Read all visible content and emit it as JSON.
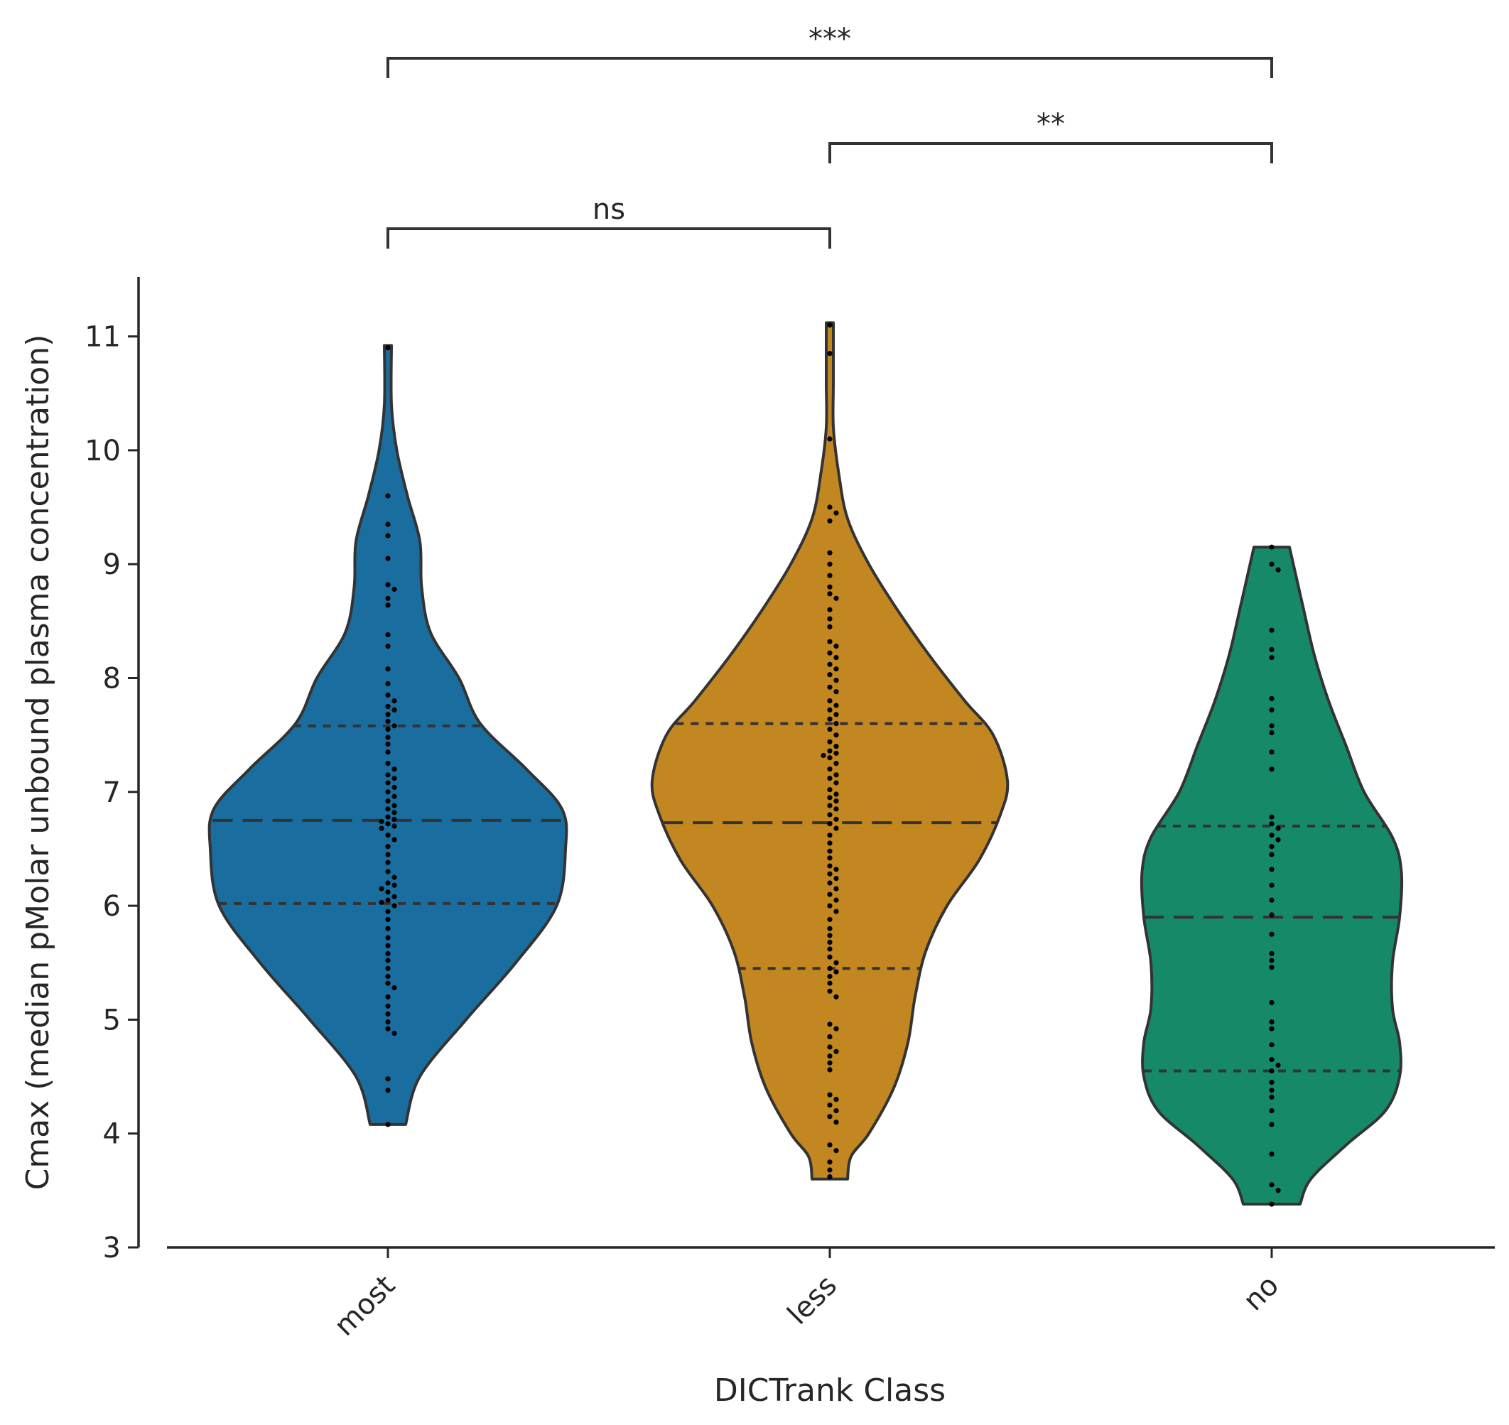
{
  "chart_data": {
    "type": "violin",
    "xlabel": "DICTrank Class",
    "ylabel": "Cmax (median pMolar unbound plasma concentration)",
    "ylim": [
      3,
      11.5
    ],
    "yticks": [
      3,
      4,
      5,
      6,
      7,
      8,
      9,
      10,
      11
    ],
    "categories": [
      "most",
      "less",
      "no"
    ],
    "grid": false,
    "series": [
      {
        "category": "most",
        "color": "#1a6e9f",
        "min": 4.08,
        "max": 10.92,
        "quartiles": [
          6.02,
          6.75,
          7.58
        ],
        "profile": [
          [
            4.08,
            0.1
          ],
          [
            4.5,
            0.18
          ],
          [
            5.0,
            0.44
          ],
          [
            5.5,
            0.72
          ],
          [
            6.0,
            0.95
          ],
          [
            6.5,
            1.0
          ],
          [
            6.85,
            0.98
          ],
          [
            7.2,
            0.78
          ],
          [
            7.6,
            0.52
          ],
          [
            8.0,
            0.4
          ],
          [
            8.4,
            0.24
          ],
          [
            8.8,
            0.19
          ],
          [
            9.2,
            0.18
          ],
          [
            9.6,
            0.11
          ],
          [
            10.0,
            0.05
          ],
          [
            10.4,
            0.02
          ],
          [
            10.92,
            0.02
          ]
        ],
        "points": [
          10.9,
          9.6,
          9.35,
          9.25,
          9.05,
          8.82,
          8.78,
          8.7,
          8.64,
          8.38,
          8.28,
          8.08,
          7.95,
          7.85,
          7.8,
          7.75,
          7.72,
          7.68,
          7.62,
          7.58,
          7.55,
          7.48,
          7.42,
          7.35,
          7.25,
          7.2,
          7.15,
          7.12,
          7.08,
          7.04,
          7.0,
          6.96,
          6.92,
          6.88,
          6.85,
          6.82,
          6.78,
          6.76,
          6.74,
          6.72,
          6.7,
          6.68,
          6.62,
          6.58,
          6.52,
          6.45,
          6.38,
          6.3,
          6.25,
          6.2,
          6.18,
          6.15,
          6.12,
          6.08,
          6.05,
          6.03,
          6.0,
          5.95,
          5.88,
          5.8,
          5.72,
          5.65,
          5.58,
          5.52,
          5.45,
          5.38,
          5.32,
          5.28,
          5.2,
          5.12,
          5.05,
          4.98,
          4.92,
          4.88,
          4.48,
          4.38,
          4.08
        ]
      },
      {
        "category": "less",
        "color": "#c28720",
        "min": 3.6,
        "max": 11.12,
        "quartiles": [
          5.45,
          6.73,
          7.6
        ],
        "profile": [
          [
            3.6,
            0.1
          ],
          [
            3.8,
            0.12
          ],
          [
            4.0,
            0.22
          ],
          [
            4.4,
            0.36
          ],
          [
            4.8,
            0.44
          ],
          [
            5.2,
            0.48
          ],
          [
            5.6,
            0.54
          ],
          [
            6.0,
            0.66
          ],
          [
            6.4,
            0.84
          ],
          [
            6.8,
            0.96
          ],
          [
            7.1,
            1.0
          ],
          [
            7.5,
            0.92
          ],
          [
            7.8,
            0.76
          ],
          [
            8.2,
            0.56
          ],
          [
            8.6,
            0.38
          ],
          [
            9.0,
            0.22
          ],
          [
            9.4,
            0.1
          ],
          [
            9.8,
            0.05
          ],
          [
            10.2,
            0.02
          ],
          [
            10.6,
            0.02
          ],
          [
            11.12,
            0.02
          ]
        ],
        "points": [
          11.1,
          10.85,
          10.1,
          9.5,
          9.45,
          9.38,
          9.1,
          9.0,
          8.9,
          8.8,
          8.74,
          8.7,
          8.6,
          8.52,
          8.45,
          8.32,
          8.28,
          8.22,
          8.18,
          8.12,
          8.08,
          8.03,
          7.98,
          7.92,
          7.88,
          7.8,
          7.76,
          7.72,
          7.68,
          7.64,
          7.6,
          7.55,
          7.5,
          7.44,
          7.4,
          7.36,
          7.34,
          7.32,
          7.3,
          7.25,
          7.2,
          7.15,
          7.12,
          7.08,
          7.02,
          6.98,
          6.95,
          6.92,
          6.88,
          6.85,
          6.8,
          6.76,
          6.72,
          6.68,
          6.62,
          6.55,
          6.48,
          6.42,
          6.35,
          6.32,
          6.28,
          6.24,
          6.2,
          6.15,
          6.1,
          6.05,
          6.0,
          5.95,
          5.88,
          5.8,
          5.74,
          5.68,
          5.62,
          5.55,
          5.5,
          5.45,
          5.42,
          5.38,
          5.32,
          5.25,
          5.2,
          4.96,
          4.92,
          4.85,
          4.76,
          4.72,
          4.68,
          4.62,
          4.56,
          4.34,
          4.3,
          4.25,
          4.2,
          4.15,
          4.1,
          3.9,
          3.85,
          3.75,
          3.68,
          3.62
        ]
      },
      {
        "category": "no",
        "color": "#168a68",
        "min": 3.38,
        "max": 9.15,
        "quartiles": [
          4.55,
          5.9,
          6.7
        ],
        "profile": [
          [
            3.38,
            0.16
          ],
          [
            3.6,
            0.22
          ],
          [
            3.9,
            0.42
          ],
          [
            4.2,
            0.64
          ],
          [
            4.5,
            0.72
          ],
          [
            4.8,
            0.72
          ],
          [
            5.1,
            0.68
          ],
          [
            5.5,
            0.68
          ],
          [
            5.9,
            0.72
          ],
          [
            6.3,
            0.73
          ],
          [
            6.6,
            0.68
          ],
          [
            7.0,
            0.52
          ],
          [
            7.4,
            0.42
          ],
          [
            7.8,
            0.32
          ],
          [
            8.2,
            0.24
          ],
          [
            8.6,
            0.18
          ],
          [
            9.15,
            0.1
          ]
        ],
        "points": [
          9.15,
          9.0,
          8.95,
          8.42,
          8.25,
          8.18,
          7.82,
          7.72,
          7.58,
          7.52,
          7.35,
          7.2,
          6.78,
          6.72,
          6.68,
          6.62,
          6.58,
          6.52,
          6.45,
          6.32,
          6.18,
          6.05,
          5.92,
          5.75,
          5.58,
          5.52,
          5.46,
          5.15,
          4.98,
          4.92,
          4.78,
          4.65,
          4.6,
          4.55,
          4.45,
          4.38,
          4.32,
          4.2,
          4.08,
          3.82,
          3.55,
          3.5,
          3.38
        ]
      }
    ],
    "significance": [
      {
        "from": "most",
        "to": "less",
        "label": "ns",
        "level": 1
      },
      {
        "from": "less",
        "to": "no",
        "label": "**",
        "level": 2
      },
      {
        "from": "most",
        "to": "no",
        "label": "***",
        "level": 3
      }
    ]
  }
}
